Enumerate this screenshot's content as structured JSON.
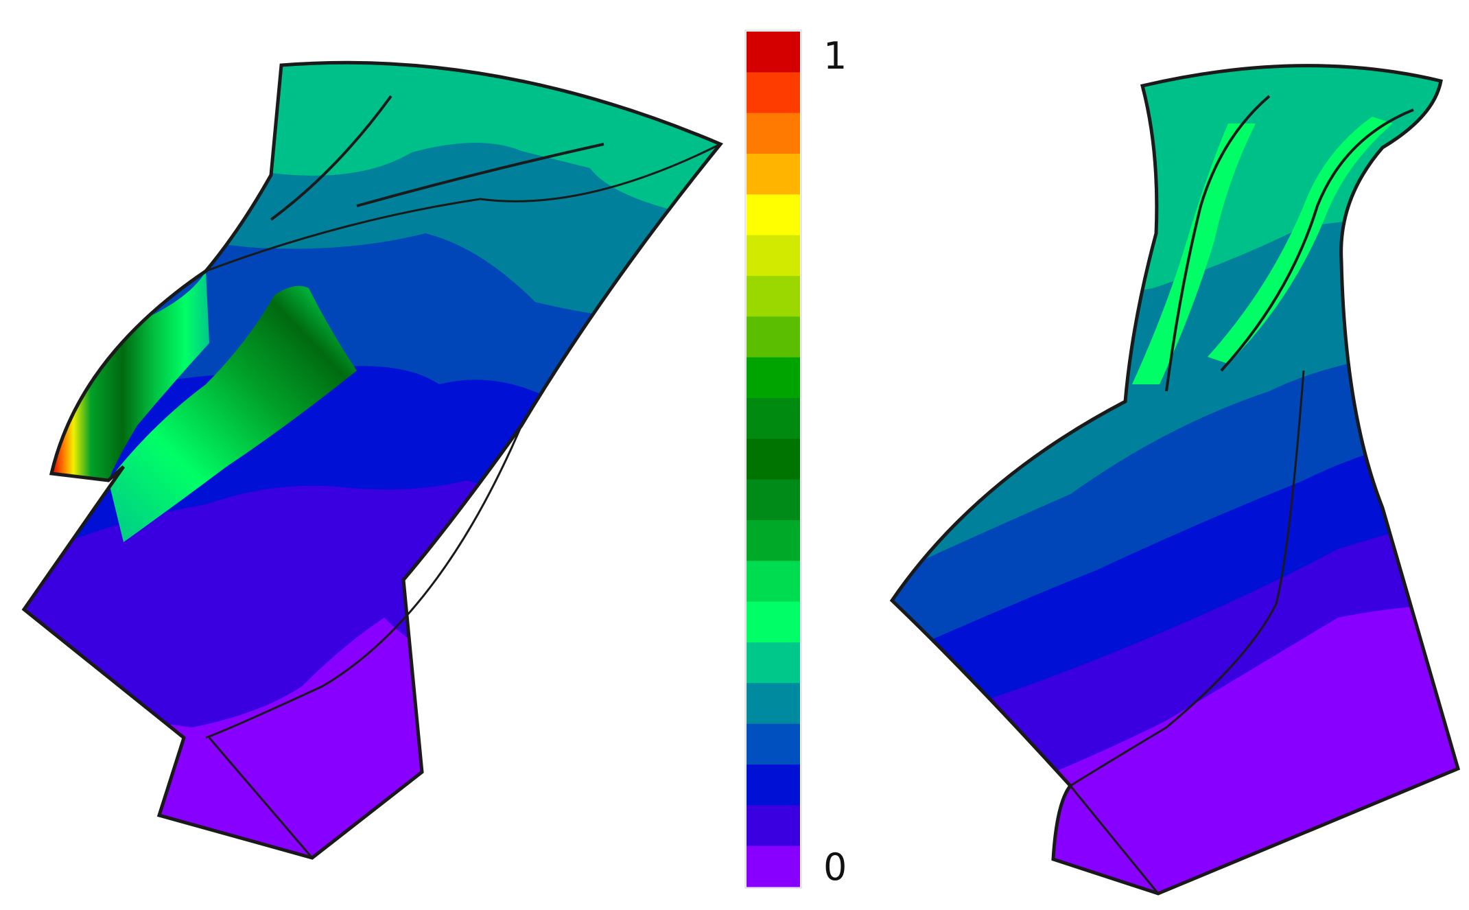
{
  "colorbar": {
    "max_label": "1",
    "min_label": "0",
    "colors": [
      "#d40000",
      "#ff3c00",
      "#ff7a00",
      "#ffb400",
      "#ffff00",
      "#d2ea00",
      "#9ad800",
      "#5cbe00",
      "#00a400",
      "#008a10",
      "#007400",
      "#008a18",
      "#00aa28",
      "#00dc50",
      "#00ff66",
      "#00c88a",
      "#008aa0",
      "#0050c0",
      "#0010d4",
      "#3a00e0",
      "#8800ff"
    ]
  },
  "contour_colors": {
    "violet": "#8800ff",
    "indigo": "#3a00e0",
    "blue": "#0010d4",
    "royal": "#0046b8",
    "teal": "#00809a",
    "sea": "#00c08a",
    "spring": "#00ff66",
    "green": "#00a028",
    "dark_green": "#006a10",
    "yellow": "#f0f000",
    "orange": "#ff8000",
    "red": "#e00000",
    "outline": "#1a1a1a"
  }
}
